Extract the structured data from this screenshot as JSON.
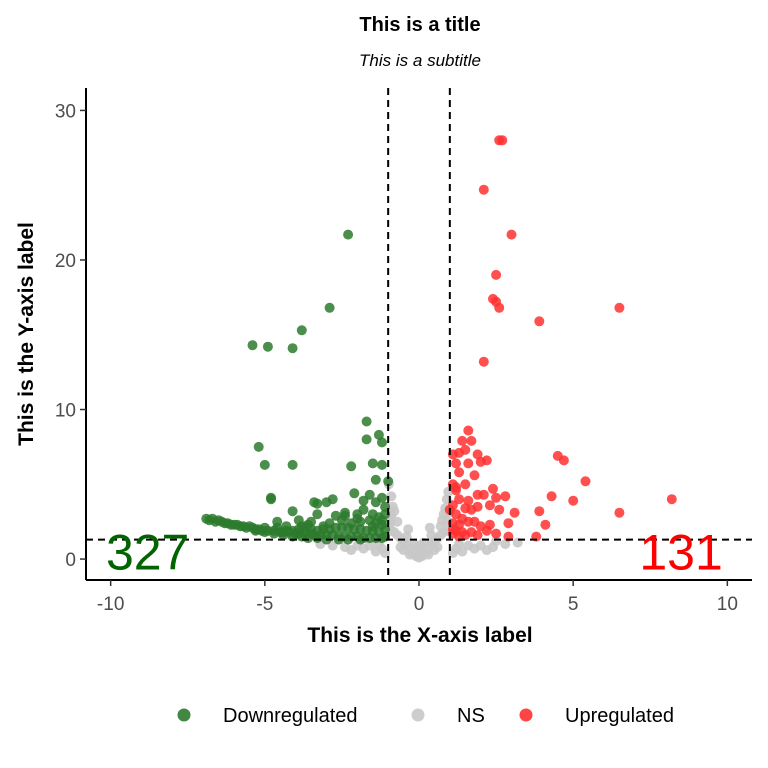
{
  "chart_data": {
    "type": "scatter",
    "title": "This is a title",
    "subtitle": "This is a subtitle",
    "xlabel": "This is the X-axis label",
    "ylabel": "This is the Y-axis label",
    "xlim": [
      -10.8,
      10.8
    ],
    "ylim": [
      -1.4,
      31.5
    ],
    "xticks": [
      -10,
      -5,
      0,
      5,
      10
    ],
    "xtick_labels": [
      "-10",
      "-5",
      "0",
      "5",
      "10"
    ],
    "yticks": [
      0,
      10,
      20,
      30
    ],
    "ytick_labels": [
      "0",
      "10",
      "20",
      "30"
    ],
    "grid": false,
    "thresholds": {
      "x": [
        -1,
        1
      ],
      "y": 1.3
    },
    "count_labels": [
      {
        "text": "327",
        "x": -8.8,
        "y": 0.5,
        "color": "#006400"
      },
      {
        "text": "131",
        "x": 8.5,
        "y": 0.5,
        "color": "#ff0000"
      }
    ],
    "legend": {
      "position": "bottom",
      "items": [
        {
          "label": "Downregulated",
          "color": "#2d7a2d"
        },
        {
          "label": "NS",
          "color": "#c8c8c8"
        },
        {
          "label": "Upregulated",
          "color": "#ff3030"
        }
      ]
    },
    "series": [
      {
        "name": "Downregulated",
        "color": "#2d7a2d",
        "points": [
          [
            -2.3,
            21.7
          ],
          [
            -2.9,
            16.8
          ],
          [
            -3.8,
            15.3
          ],
          [
            -5.4,
            14.3
          ],
          [
            -4.9,
            14.2
          ],
          [
            -4.1,
            14.1
          ],
          [
            -1.7,
            9.2
          ],
          [
            -1.3,
            8.3
          ],
          [
            -1.2,
            7.8
          ],
          [
            -1.7,
            8.0
          ],
          [
            -5.2,
            7.5
          ],
          [
            -2.2,
            6.2
          ],
          [
            -1.5,
            6.4
          ],
          [
            -1.2,
            6.3
          ],
          [
            -5.0,
            6.3
          ],
          [
            -4.1,
            6.3
          ],
          [
            -1.0,
            5.2
          ],
          [
            -1.4,
            5.3
          ],
          [
            -4.8,
            4.0
          ],
          [
            -4.8,
            4.1
          ],
          [
            -2.1,
            4.4
          ],
          [
            -1.6,
            4.3
          ],
          [
            -1.2,
            4.1
          ],
          [
            -2.8,
            4.0
          ],
          [
            -3.0,
            3.8
          ],
          [
            -3.4,
            3.8
          ],
          [
            -3.3,
            3.7
          ],
          [
            -2.4,
            3.1
          ],
          [
            -2.0,
            3.0
          ],
          [
            -1.8,
            3.3
          ],
          [
            -1.5,
            3.0
          ],
          [
            -1.1,
            3.5
          ],
          [
            -1.3,
            2.8
          ],
          [
            -2.7,
            2.9
          ],
          [
            -3.3,
            3.0
          ],
          [
            -4.1,
            3.2
          ],
          [
            -3.9,
            2.6
          ],
          [
            -2.5,
            2.6
          ],
          [
            -1.9,
            2.5
          ],
          [
            -1.6,
            2.6
          ],
          [
            -1.2,
            2.3
          ],
          [
            -1.4,
            2.4
          ],
          [
            -2.2,
            2.4
          ],
          [
            -2.9,
            2.4
          ],
          [
            -3.6,
            2.3
          ],
          [
            -4.3,
            2.2
          ],
          [
            -4.6,
            2.1
          ],
          [
            -5.0,
            2.1
          ],
          [
            -5.2,
            2.0
          ],
          [
            -5.5,
            2.2
          ],
          [
            -5.8,
            2.2
          ],
          [
            -6.1,
            2.3
          ],
          [
            -6.3,
            2.4
          ],
          [
            -6.6,
            2.5
          ],
          [
            -6.9,
            2.7
          ],
          [
            -6.8,
            2.6
          ],
          [
            -6.7,
            2.7
          ],
          [
            -6.5,
            2.6
          ],
          [
            -6.4,
            2.5
          ],
          [
            -6.2,
            2.4
          ],
          [
            -6.0,
            2.3
          ],
          [
            -5.9,
            2.3
          ],
          [
            -5.7,
            2.2
          ],
          [
            -5.6,
            2.1
          ],
          [
            -5.4,
            2.1
          ],
          [
            -5.3,
            2.0
          ],
          [
            -5.1,
            1.9
          ],
          [
            -4.9,
            1.9
          ],
          [
            -4.7,
            1.9
          ],
          [
            -4.5,
            1.8
          ],
          [
            -4.4,
            1.8
          ],
          [
            -4.2,
            1.8
          ],
          [
            -4.0,
            1.7
          ],
          [
            -3.9,
            1.7
          ],
          [
            -3.7,
            1.7
          ],
          [
            -3.5,
            1.7
          ],
          [
            -3.4,
            1.6
          ],
          [
            -3.2,
            1.6
          ],
          [
            -3.0,
            1.6
          ],
          [
            -2.8,
            1.6
          ],
          [
            -2.6,
            1.5
          ],
          [
            -2.4,
            1.5
          ],
          [
            -2.2,
            1.5
          ],
          [
            -2.0,
            1.5
          ],
          [
            -1.8,
            1.4
          ],
          [
            -1.6,
            1.4
          ],
          [
            -1.4,
            1.4
          ],
          [
            -1.2,
            1.4
          ],
          [
            -1.1,
            1.5
          ],
          [
            -1.3,
            1.8
          ],
          [
            -1.5,
            1.9
          ],
          [
            -1.7,
            1.9
          ],
          [
            -1.9,
            2.0
          ],
          [
            -2.1,
            2.0
          ],
          [
            -2.3,
            2.1
          ],
          [
            -2.5,
            2.1
          ],
          [
            -2.7,
            2.1
          ],
          [
            -2.9,
            2.0
          ],
          [
            -3.1,
            2.0
          ],
          [
            -3.3,
            1.9
          ],
          [
            -3.5,
            2.0
          ],
          [
            -3.7,
            2.1
          ],
          [
            -3.9,
            2.0
          ],
          [
            -4.1,
            1.9
          ],
          [
            -4.3,
            1.9
          ],
          [
            -3.0,
            1.3
          ],
          [
            -3.3,
            1.4
          ],
          [
            -2.6,
            1.3
          ],
          [
            -2.3,
            1.3
          ],
          [
            -1.9,
            1.3
          ],
          [
            -3.6,
            1.4
          ],
          [
            -3.8,
            1.5
          ],
          [
            -4.1,
            1.5
          ],
          [
            -4.4,
            1.6
          ],
          [
            -4.7,
            1.7
          ],
          [
            -5.0,
            1.8
          ],
          [
            -5.3,
            1.9
          ],
          [
            -1.1,
            2.0
          ],
          [
            -1.2,
            2.6
          ],
          [
            -1.1,
            3.0
          ],
          [
            -1.5,
            2.2
          ],
          [
            -2.0,
            2.7
          ],
          [
            -2.4,
            2.9
          ],
          [
            -3.1,
            2.2
          ],
          [
            -3.5,
            2.5
          ],
          [
            -3.8,
            2.2
          ],
          [
            -4.6,
            2.5
          ],
          [
            -1.4,
            3.8
          ],
          [
            -1.8,
            3.9
          ]
        ]
      },
      {
        "name": "NS",
        "color": "#c8c8c8",
        "points": [
          [
            -0.9,
            1.9
          ],
          [
            -0.8,
            1.8
          ],
          [
            -0.7,
            1.6
          ],
          [
            -0.6,
            1.4
          ],
          [
            -0.5,
            1.2
          ],
          [
            -0.4,
            1.0
          ],
          [
            -0.3,
            0.7
          ],
          [
            -0.2,
            0.4
          ],
          [
            -0.1,
            0.2
          ],
          [
            0.0,
            0.1
          ],
          [
            0.1,
            0.2
          ],
          [
            0.2,
            0.4
          ],
          [
            0.3,
            0.7
          ],
          [
            0.4,
            1.0
          ],
          [
            0.5,
            1.2
          ],
          [
            0.6,
            1.4
          ],
          [
            0.7,
            1.6
          ],
          [
            0.8,
            1.8
          ],
          [
            0.9,
            1.9
          ],
          [
            -0.95,
            2.3
          ],
          [
            -0.9,
            2.9
          ],
          [
            -0.85,
            3.5
          ],
          [
            -0.9,
            4.2
          ],
          [
            -0.8,
            3.2
          ],
          [
            -0.7,
            2.5
          ],
          [
            0.7,
            2.2
          ],
          [
            0.75,
            2.6
          ],
          [
            0.8,
            3.0
          ],
          [
            0.85,
            3.4
          ],
          [
            0.9,
            4.0
          ],
          [
            0.95,
            4.5
          ],
          [
            -0.6,
            0.8
          ],
          [
            -0.5,
            0.6
          ],
          [
            0.5,
            0.6
          ],
          [
            0.6,
            0.8
          ],
          [
            -0.3,
            0.3
          ],
          [
            0.3,
            0.3
          ],
          [
            0.0,
            0.5
          ],
          [
            0.15,
            1.1
          ],
          [
            -0.15,
            1.0
          ],
          [
            0.4,
            1.6
          ],
          [
            -0.4,
            1.5
          ],
          [
            0.35,
            2.1
          ],
          [
            -0.35,
            2.0
          ],
          [
            0.05,
            0.9
          ],
          [
            -0.05,
            0.8
          ],
          [
            -1.3,
            1.0
          ],
          [
            -1.6,
            0.9
          ],
          [
            -2.0,
            0.9
          ],
          [
            -2.4,
            0.8
          ],
          [
            -2.8,
            0.9
          ],
          [
            -3.2,
            1.0
          ],
          [
            -1.2,
            0.7
          ],
          [
            -1.8,
            0.7
          ],
          [
            -2.2,
            0.6
          ],
          [
            -1.4,
            0.5
          ],
          [
            -1.1,
            0.4
          ],
          [
            1.3,
            1.0
          ],
          [
            1.6,
            0.9
          ],
          [
            2.0,
            0.9
          ],
          [
            2.4,
            0.8
          ],
          [
            2.8,
            1.0
          ],
          [
            3.2,
            1.1
          ],
          [
            1.2,
            0.7
          ],
          [
            1.8,
            0.7
          ],
          [
            2.2,
            0.6
          ],
          [
            1.4,
            0.5
          ],
          [
            1.1,
            0.4
          ],
          [
            2.5,
            1.2
          ],
          [
            -0.98,
            5.0
          ],
          [
            -0.92,
            2.6
          ],
          [
            0.92,
            2.5
          ],
          [
            0.97,
            3.1
          ]
        ]
      },
      {
        "name": "Upregulated",
        "color": "#ff3030",
        "points": [
          [
            2.6,
            28.0
          ],
          [
            2.7,
            28.0
          ],
          [
            2.1,
            24.7
          ],
          [
            3.0,
            21.7
          ],
          [
            2.5,
            19.0
          ],
          [
            2.4,
            17.4
          ],
          [
            2.5,
            17.2
          ],
          [
            2.6,
            16.8
          ],
          [
            6.5,
            16.8
          ],
          [
            3.9,
            15.9
          ],
          [
            2.1,
            13.2
          ],
          [
            1.6,
            8.6
          ],
          [
            1.4,
            7.9
          ],
          [
            1.7,
            7.9
          ],
          [
            1.3,
            7.1
          ],
          [
            1.5,
            7.3
          ],
          [
            1.1,
            7.0
          ],
          [
            1.9,
            7.0
          ],
          [
            2.0,
            6.5
          ],
          [
            2.2,
            6.6
          ],
          [
            1.6,
            6.4
          ],
          [
            1.2,
            6.4
          ],
          [
            4.5,
            6.9
          ],
          [
            4.7,
            6.6
          ],
          [
            5.4,
            5.2
          ],
          [
            1.3,
            5.8
          ],
          [
            1.8,
            5.6
          ],
          [
            2.4,
            4.7
          ],
          [
            1.1,
            5.0
          ],
          [
            1.5,
            5.0
          ],
          [
            1.2,
            4.6
          ],
          [
            1.9,
            4.3
          ],
          [
            2.1,
            4.3
          ],
          [
            2.5,
            4.1
          ],
          [
            2.8,
            4.2
          ],
          [
            4.3,
            4.2
          ],
          [
            5.0,
            3.9
          ],
          [
            8.2,
            4.0
          ],
          [
            1.3,
            4.0
          ],
          [
            1.1,
            3.6
          ],
          [
            1.5,
            3.4
          ],
          [
            1.7,
            3.3
          ],
          [
            1.9,
            3.5
          ],
          [
            2.3,
            3.6
          ],
          [
            2.6,
            3.3
          ],
          [
            3.1,
            3.1
          ],
          [
            3.9,
            3.2
          ],
          [
            6.5,
            3.1
          ],
          [
            1.2,
            3.0
          ],
          [
            1.4,
            2.7
          ],
          [
            1.6,
            2.5
          ],
          [
            1.1,
            2.4
          ],
          [
            1.3,
            2.3
          ],
          [
            1.8,
            2.5
          ],
          [
            2.0,
            2.2
          ],
          [
            2.3,
            2.3
          ],
          [
            2.9,
            2.4
          ],
          [
            4.1,
            2.3
          ],
          [
            1.2,
            1.9
          ],
          [
            1.4,
            1.8
          ],
          [
            1.7,
            1.8
          ],
          [
            2.2,
            1.9
          ],
          [
            2.5,
            1.7
          ],
          [
            1.1,
            1.7
          ],
          [
            1.5,
            1.6
          ],
          [
            1.9,
            1.6
          ],
          [
            2.9,
            1.5
          ],
          [
            3.8,
            1.5
          ],
          [
            1.3,
            1.5
          ],
          [
            1.1,
            2.0
          ],
          [
            1.6,
            3.9
          ],
          [
            1.2,
            4.8
          ],
          [
            1.0,
            3.3
          ]
        ]
      }
    ]
  }
}
